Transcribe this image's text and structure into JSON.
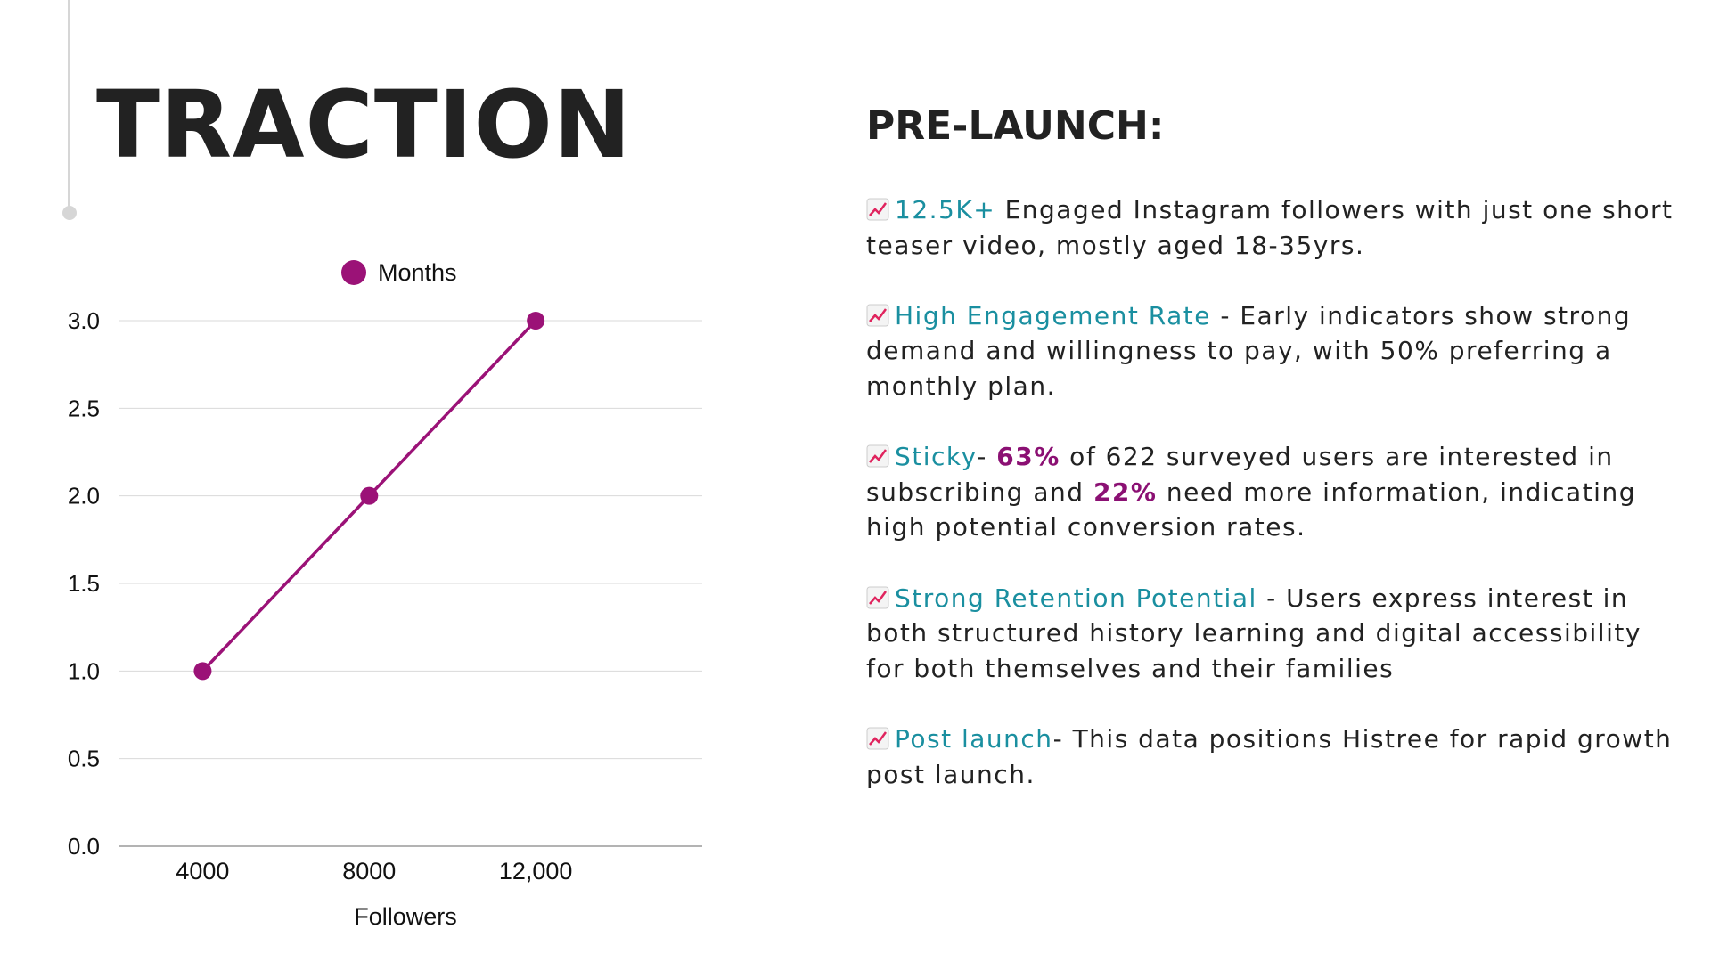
{
  "slide": {
    "title": "TRACTION"
  },
  "colors": {
    "accent": "#1a8fa0",
    "highlight": "#8b1073",
    "series": "#9b1277",
    "text": "#222222",
    "decor": "#d6d6d6"
  },
  "prelaunch": {
    "heading": "PRE-LAUNCH:",
    "icon": "chart-increasing-icon",
    "bullets": [
      {
        "keyword": "12.5K+",
        "text": " Engaged Instagram followers with just one short teaser video, mostly aged 18-35yrs."
      },
      {
        "keyword": "High Engagement Rate",
        "text": " - Early indicators show strong demand and willingness to pay, with 50% preferring a monthly plan."
      },
      {
        "keyword": "Sticky",
        "sep": "- ",
        "hl1": "63%",
        "mid": " of 622 surveyed users are interested in subscribing and ",
        "hl2": "22%",
        "end": " need more information, indicating high potential conversion rates."
      },
      {
        "keyword": "Strong Retention Potential",
        "text": " - Users express interest in both structured history learning and digital accessibility for both themselves and their families"
      },
      {
        "keyword": "Post launch",
        "text": "- This data positions Histree for rapid growth post launch."
      }
    ]
  },
  "chart_data": {
    "type": "line",
    "categories": [
      "4000",
      "8000",
      "12,000"
    ],
    "series": [
      {
        "name": "Months",
        "values": [
          1,
          2,
          3
        ]
      }
    ],
    "xlabel": "Followers",
    "ylabel": "",
    "ylim": [
      0,
      3
    ],
    "yticks": [
      "0.0",
      "0.5",
      "1.0",
      "1.5",
      "2.0",
      "2.5",
      "3.0"
    ],
    "grid": true,
    "legend": "top"
  }
}
